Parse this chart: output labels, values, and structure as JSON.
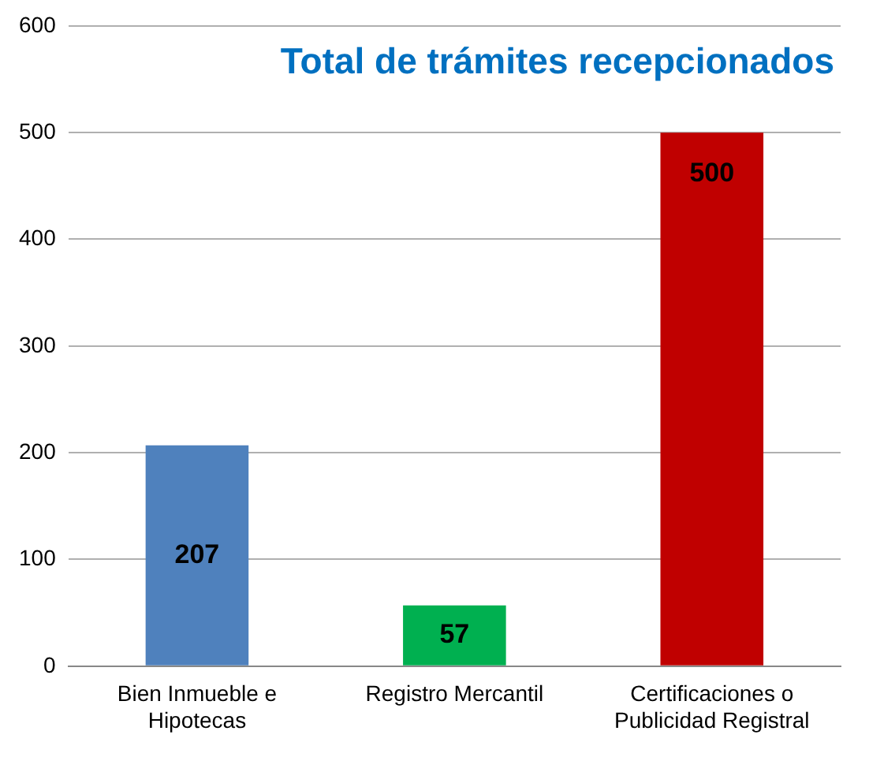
{
  "chart_data": {
    "type": "bar",
    "title": "Total de trámites recepcionados",
    "categories": [
      "Bien Inmueble e Hipotecas",
      "Registro Mercantil",
      "Certificaciones o Publicidad Registral"
    ],
    "values": [
      207,
      57,
      500
    ],
    "colors": [
      "#4f81bd",
      "#00b050",
      "#c00000"
    ],
    "ylim": [
      0,
      600
    ],
    "yticks": [
      0,
      100,
      200,
      300,
      400,
      500,
      600
    ],
    "grid": "y",
    "legend": false,
    "data_labels": true
  }
}
